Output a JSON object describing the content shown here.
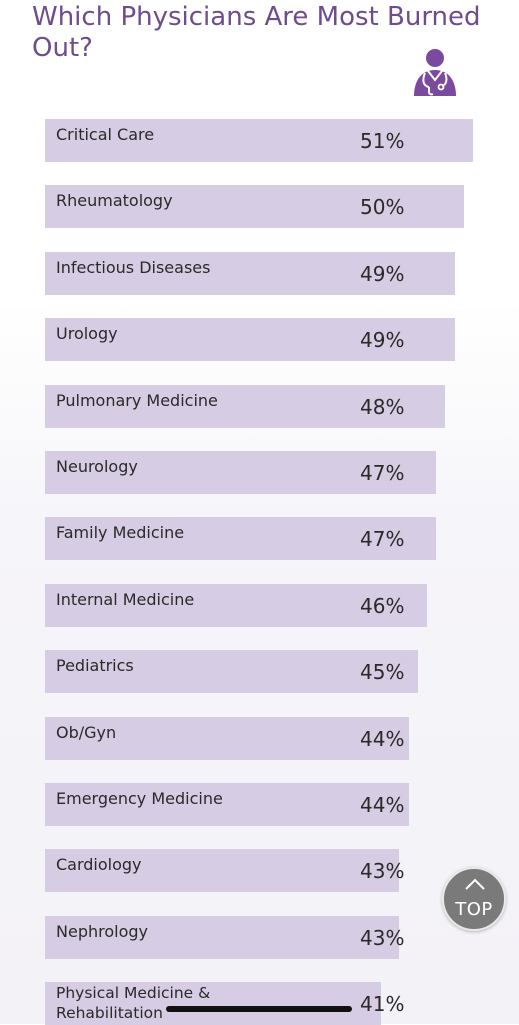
{
  "page": {
    "title": "Which Physicians Are Most Burned Out?"
  },
  "icons": {
    "doctor": "doctor-stethoscope-icon",
    "top_chevron": "chevron-up-icon"
  },
  "colors": {
    "title": "#6f4c8c",
    "bar": "#d6cce3",
    "icon": "#7b4a9e",
    "top_button": "#7a7a7a"
  },
  "top_button": {
    "label": "TOP"
  },
  "chart_data": {
    "type": "bar",
    "orientation": "horizontal",
    "title": "Which Physicians Are Most Burned Out?",
    "categories": [
      "Critical Care",
      "Rheumatology",
      "Infectious Diseases",
      "Urology",
      "Pulmonary Medicine",
      "Neurology",
      "Family Medicine",
      "Internal Medicine",
      "Pediatrics",
      "Ob/Gyn",
      "Emergency Medicine",
      "Cardiology",
      "Nephrology",
      "Physical Medicine & Rehabilitation"
    ],
    "values": [
      51,
      50,
      49,
      49,
      48,
      47,
      47,
      46,
      45,
      44,
      44,
      43,
      43,
      41
    ],
    "value_labels": [
      "51%",
      "50%",
      "49%",
      "49%",
      "48%",
      "47%",
      "47%",
      "46%",
      "45%",
      "44%",
      "44%",
      "43%",
      "43%",
      "41%"
    ],
    "unit": "%",
    "grid": false,
    "legend": "none"
  }
}
